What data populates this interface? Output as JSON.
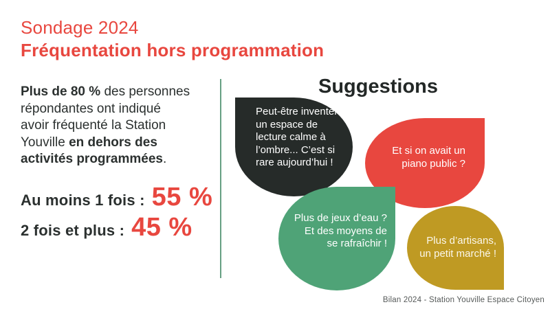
{
  "title": {
    "line1": "Sondage 2024",
    "line2": "Fréquentation hors programmation"
  },
  "intro": {
    "seg1_bold": "Plus de 80 %",
    "seg2": " des personnes\nrépondantes ont indiqué\navoir fréquenté la Station\nYouville ",
    "seg3_bold": "en dehors des\nactivités programmées",
    "seg4": "."
  },
  "stats": {
    "row1": {
      "label": "Au moins 1 fois :",
      "value": "55 %"
    },
    "row2": {
      "label": "2 fois et plus :",
      "value": "45 %"
    }
  },
  "suggestions": {
    "heading": "Suggestions",
    "bubble_lecture": {
      "text": "Peut-être inventer\nun espace de\nlecture calme à\nl’ombre... C’est si\nrare aujourd’hui !",
      "color": "#262B29"
    },
    "bubble_piano": {
      "text": "Et si on avait un\npiano public ?",
      "color": "#E8473F"
    },
    "bubble_jeux_eau": {
      "text": "Plus de jeux d’eau ?\nEt des moyens de\nse rafraîchir !",
      "color": "#4FA377"
    },
    "bubble_marche": {
      "text": "Plus d’artisans,\nun petit marché !",
      "color": "#BF9A23"
    }
  },
  "footer": "Bilan 2024 - Station Youville Espace Citoyen",
  "colors": {
    "accent_red": "#E8473F",
    "text_dark": "#2B302F",
    "divider_green": "#66A083",
    "background": "#FFFFFF"
  }
}
